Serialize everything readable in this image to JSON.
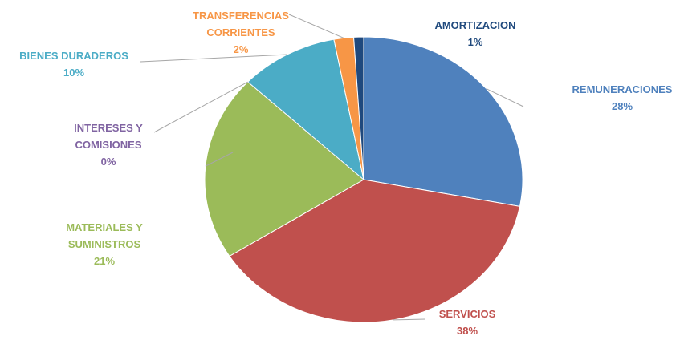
{
  "chart_data": {
    "type": "pie",
    "categories": [
      "REMUNERACIONES",
      "SERVICIOS",
      "MATERIALES Y SUMINISTROS",
      "INTERESES Y COMISIONES",
      "BIENES DURADEROS",
      "TRANSFERENCIAS CORRIENTES",
      "AMORTIZACION"
    ],
    "values": [
      28,
      38,
      21,
      0,
      10,
      2,
      1
    ],
    "value_labels": [
      "28%",
      "38%",
      "21%",
      "0%",
      "10%",
      "2%",
      "1%"
    ],
    "colors": [
      "#4f81bd",
      "#c0504d",
      "#9bbb59",
      "#8064a2",
      "#4bacc6",
      "#f79646",
      "#1f497d"
    ]
  }
}
